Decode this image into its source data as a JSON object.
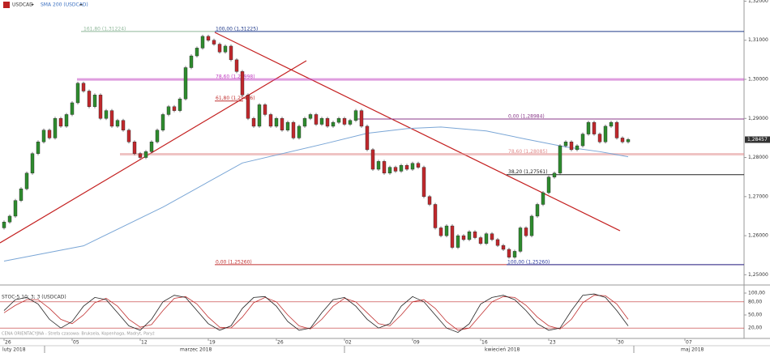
{
  "header": {
    "symbol": "USDCAD",
    "indicator": "SMA 200 (USDCAD)"
  },
  "price_axis": {
    "ylim": [
      1.2478,
      1.3203
    ],
    "ticks": [
      {
        "value": 1.32,
        "label": "1,32000"
      },
      {
        "value": 1.31,
        "label": "1,31000"
      },
      {
        "value": 1.3,
        "label": "1,30000"
      },
      {
        "value": 1.29,
        "label": "1,29000"
      },
      {
        "value": 1.28,
        "label": "1,28000"
      },
      {
        "value": 1.27,
        "label": "1,27000"
      },
      {
        "value": 1.26,
        "label": "1,26000"
      },
      {
        "value": 1.25,
        "label": "1,25000"
      }
    ],
    "last_price": {
      "value": 1.28457,
      "label": "1,28457"
    }
  },
  "candles": {
    "open_first": 1.262,
    "close": [
      1.2635,
      1.265,
      1.269,
      1.272,
      1.276,
      1.281,
      1.284,
      1.287,
      1.285,
      1.29,
      1.288,
      1.291,
      1.294,
      1.299,
      1.297,
      1.293,
      1.296,
      1.29,
      1.292,
      1.288,
      1.2895,
      1.287,
      1.284,
      1.281,
      1.28,
      1.2815,
      1.284,
      1.287,
      1.291,
      1.293,
      1.292,
      1.295,
      1.303,
      1.306,
      1.308,
      1.311,
      1.31,
      1.309,
      1.307,
      1.3085,
      1.305,
      1.302,
      1.296,
      1.29,
      1.288,
      1.2935,
      1.291,
      1.288,
      1.29,
      1.287,
      1.289,
      1.285,
      1.288,
      1.29,
      1.291,
      1.2885,
      1.29,
      1.288,
      1.289,
      1.29,
      1.2885,
      1.2895,
      1.292,
      1.288,
      1.282,
      1.277,
      1.279,
      1.276,
      1.2775,
      1.2765,
      1.278,
      1.277,
      1.2785,
      1.2775,
      1.27,
      1.268,
      1.262,
      1.26,
      1.2625,
      1.257,
      1.26,
      1.259,
      1.261,
      1.2595,
      1.258,
      1.2605,
      1.259,
      1.2575,
      1.2565,
      1.2545,
      1.256,
      1.262,
      1.26,
      1.265,
      1.268,
      1.271,
      1.275,
      1.276,
      1.283,
      1.284,
      1.282,
      1.283,
      1.286,
      1.289,
      1.286,
      1.284,
      1.288,
      1.289,
      1.285,
      1.284,
      1.2846
    ],
    "up_color": "#2e8b2e",
    "down_color": "#c0282c"
  },
  "sma": {
    "color": "#7aa6d6",
    "index": [
      0,
      14,
      28,
      42,
      57,
      64,
      71,
      77,
      85,
      92,
      99,
      105,
      110
    ],
    "values": [
      1.2535,
      1.2574,
      1.2673,
      1.2786,
      1.2837,
      1.2862,
      1.2874,
      1.2878,
      1.2868,
      1.2847,
      1.2827,
      1.2815,
      1.2802
    ]
  },
  "fibonacci": [
    {
      "label": "161,80 (1,31224)",
      "value": 1.31224,
      "color": "#8fb89a"
    },
    {
      "label": "100,00 (1,31225)",
      "value": 1.31225,
      "color": "#1f3a8a"
    },
    {
      "label": "78,60 (1,29998)",
      "value": 1.29998,
      "color": "#c03cc0"
    },
    {
      "label": "61,80 (1,29446)",
      "value": 1.29446,
      "color": "#c03030"
    },
    {
      "label": "0,00 (1,28984)",
      "value": 1.28984,
      "color": "#8a3a8a"
    },
    {
      "label": "78,60 (1,28085)",
      "value": 1.28085,
      "color": "#e08a8a"
    },
    {
      "label": "38,20 (1,27561)",
      "value": 1.27561,
      "color": "#222222"
    },
    {
      "label": "0,00 (1,25260)",
      "value": 1.2526,
      "color": "#c03030"
    },
    {
      "label": "100,00 (1,25260)",
      "value": 1.2526,
      "color": "#2a3aa0"
    }
  ],
  "stochastic": {
    "title": "STOC-5 10; 3; 3 (USDCAD)",
    "ylim": [
      0,
      100
    ],
    "ticks": [
      {
        "value": 100,
        "label": "100,00"
      },
      {
        "value": 80,
        "label": "80,00"
      },
      {
        "value": 50,
        "label": "50,00"
      },
      {
        "value": 20,
        "label": "20,00"
      }
    ],
    "k": [
      60,
      85,
      90,
      75,
      40,
      20,
      35,
      70,
      90,
      85,
      55,
      25,
      15,
      40,
      80,
      95,
      90,
      60,
      30,
      15,
      25,
      65,
      90,
      92,
      70,
      35,
      15,
      20,
      55,
      85,
      90,
      70,
      40,
      20,
      30,
      70,
      92,
      80,
      50,
      20,
      10,
      30,
      75,
      90,
      95,
      85,
      60,
      30,
      15,
      20,
      60,
      95,
      98,
      90,
      60,
      25
    ],
    "d": [
      55,
      72,
      85,
      85,
      65,
      40,
      30,
      50,
      78,
      88,
      70,
      40,
      22,
      28,
      60,
      88,
      92,
      75,
      45,
      22,
      20,
      45,
      78,
      90,
      80,
      50,
      25,
      18,
      40,
      70,
      88,
      80,
      55,
      30,
      25,
      50,
      80,
      85,
      65,
      35,
      15,
      20,
      50,
      80,
      92,
      90,
      72,
      45,
      25,
      18,
      40,
      78,
      95,
      94,
      75,
      40
    ],
    "k_color": "#222222",
    "d_color": "#c03030"
  },
  "time_axis": {
    "days": [
      "26",
      "05",
      "12",
      "19",
      "26",
      "02",
      "09",
      "16",
      "23",
      "30",
      "07"
    ],
    "months": [
      "luty 2018",
      "marzec 2018",
      "kwiecień 2018",
      "maj 2018"
    ]
  },
  "footer": "CENA ORIENTACYJNA - Strefa czasowa: Bruksela, Kopenhaga, Madryt, Paryż"
}
